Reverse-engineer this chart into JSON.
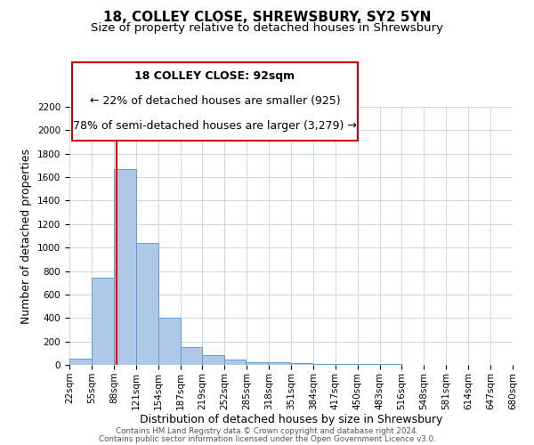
{
  "title": "18, COLLEY CLOSE, SHREWSBURY, SY2 5YN",
  "subtitle": "Size of property relative to detached houses in Shrewsbury",
  "xlabel": "Distribution of detached houses by size in Shrewsbury",
  "ylabel": "Number of detached properties",
  "bar_values": [
    50,
    745,
    1670,
    1040,
    405,
    150,
    80,
    45,
    25,
    20,
    15,
    10,
    5,
    5,
    10,
    0,
    0,
    0,
    0,
    0
  ],
  "all_bin_starts": [
    22,
    55,
    88,
    121,
    154,
    187,
    219,
    252,
    285,
    318,
    351,
    384,
    417,
    450,
    483,
    516,
    548,
    581,
    614,
    647
  ],
  "bin_width": 33,
  "tick_labels": [
    "22sqm",
    "55sqm",
    "88sqm",
    "121sqm",
    "154sqm",
    "187sqm",
    "219sqm",
    "252sqm",
    "285sqm",
    "318sqm",
    "351sqm",
    "384sqm",
    "417sqm",
    "450sqm",
    "483sqm",
    "516sqm",
    "548sqm",
    "581sqm",
    "614sqm",
    "647sqm",
    "680sqm"
  ],
  "ylim": [
    0,
    2200
  ],
  "yticks": [
    0,
    200,
    400,
    600,
    800,
    1000,
    1200,
    1400,
    1600,
    1800,
    2000,
    2200
  ],
  "bar_color": "#aec8e8",
  "bar_edge_color": "#5a9fd4",
  "red_line_x": 92,
  "annotation_text1": "18 COLLEY CLOSE: 92sqm",
  "annotation_text2": "← 22% of detached houses are smaller (925)",
  "annotation_text3": "78% of semi-detached houses are larger (3,279) →",
  "footer1": "Contains HM Land Registry data © Crown copyright and database right 2024.",
  "footer2": "Contains public sector information licensed under the Open Government Licence v3.0.",
  "background_color": "#ffffff",
  "grid_color": "#c8d8e8",
  "annotation_box_color": "#ffffff",
  "annotation_box_edge": "#cc0000",
  "title_fontsize": 11,
  "subtitle_fontsize": 9.5,
  "axis_label_fontsize": 9,
  "tick_fontsize": 7.5,
  "annotation_fontsize": 9
}
